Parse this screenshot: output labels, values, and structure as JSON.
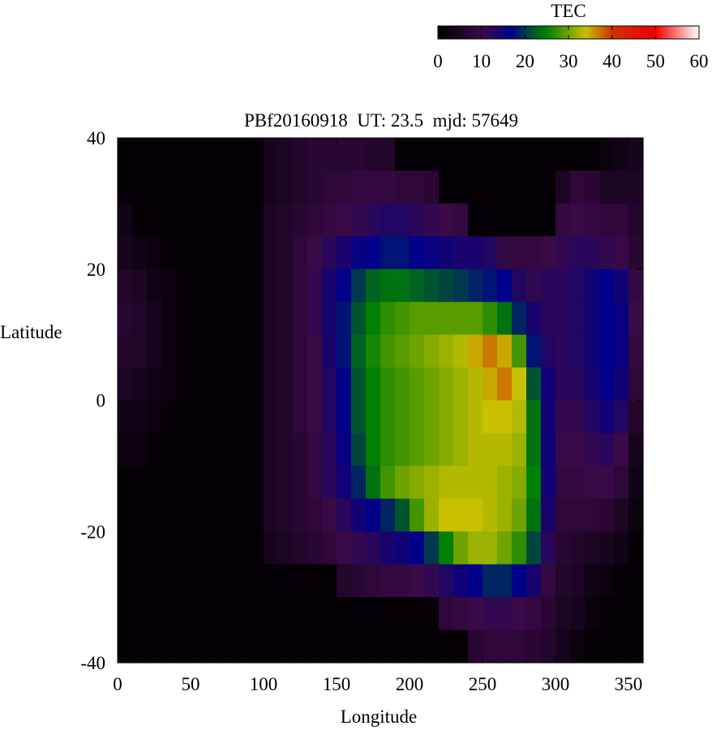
{
  "chart_data": {
    "type": "heatmap",
    "title": "PBf20160918  UT: 23.5  mjd: 57649",
    "xlabel": "Longitude",
    "ylabel": "Latitude",
    "xlim": [
      0,
      360
    ],
    "ylim": [
      -40,
      40
    ],
    "xticks": [
      "0",
      "50",
      "100",
      "150",
      "200",
      "250",
      "300",
      "350"
    ],
    "xtick_values": [
      0,
      50,
      100,
      150,
      200,
      250,
      300,
      350
    ],
    "yticks": [
      "40",
      "20",
      "0",
      "-20",
      "-40"
    ],
    "ytick_values": [
      40,
      20,
      0,
      -20,
      -40
    ],
    "colorbar": {
      "label": "TEC",
      "range": [
        0,
        60
      ],
      "ticks": [
        "0",
        "10",
        "20",
        "30",
        "40",
        "50",
        "60"
      ],
      "tick_values": [
        0,
        10,
        20,
        30,
        40,
        50,
        60
      ],
      "colormap": [
        [
          0,
          "#000000"
        ],
        [
          10,
          "#3a0a48"
        ],
        [
          17,
          "#00008a"
        ],
        [
          20,
          "#00384e"
        ],
        [
          25,
          "#008000"
        ],
        [
          34,
          "#c8c000"
        ],
        [
          40,
          "#d03000"
        ],
        [
          50,
          "#f00000"
        ],
        [
          60,
          "#ffffff"
        ]
      ]
    },
    "lon_centers": [
      5,
      15,
      25,
      35,
      45,
      55,
      65,
      75,
      85,
      95,
      105,
      115,
      125,
      135,
      145,
      155,
      165,
      175,
      185,
      195,
      205,
      215,
      225,
      235,
      245,
      255,
      265,
      275,
      285,
      295,
      305,
      315,
      325,
      335,
      345,
      355
    ],
    "lat_centers": [
      37.5,
      32.5,
      27.5,
      22.5,
      17.5,
      12.5,
      7.5,
      2.5,
      -2.5,
      -7.5,
      -12.5,
      -17.5,
      -22.5,
      -27.5,
      -32.5,
      -37.5
    ],
    "values": [
      [
        1,
        1,
        1,
        1,
        1,
        1,
        1,
        1,
        1,
        1,
        4,
        5,
        6,
        7,
        7,
        7,
        7,
        6,
        6,
        1,
        1,
        1,
        1,
        1,
        1,
        1,
        1,
        1,
        1,
        1,
        1,
        1,
        1,
        2,
        3,
        4
      ],
      [
        1,
        1,
        1,
        1,
        1,
        1,
        1,
        1,
        1,
        1,
        4,
        5,
        6,
        7,
        8,
        8,
        9,
        9,
        9,
        8,
        8,
        7,
        1,
        1,
        1,
        1,
        1,
        1,
        1,
        1,
        5,
        8,
        7,
        5,
        5,
        5
      ],
      [
        3,
        1,
        1,
        1,
        1,
        1,
        1,
        1,
        1,
        1,
        5,
        6,
        7,
        8,
        9,
        10,
        11,
        12,
        13,
        13,
        12,
        11,
        10,
        9,
        1,
        1,
        1,
        1,
        1,
        1,
        9,
        10,
        9,
        8,
        8,
        6
      ],
      [
        4,
        3,
        2,
        1,
        1,
        1,
        1,
        1,
        1,
        1,
        5,
        6,
        8,
        10,
        12,
        14,
        16,
        17,
        18,
        18,
        17,
        16,
        15,
        14,
        14,
        13,
        9,
        9,
        9,
        10,
        11,
        12,
        12,
        11,
        10,
        7
      ],
      [
        6,
        5,
        3,
        2,
        1,
        1,
        1,
        1,
        1,
        1,
        5,
        6,
        8,
        11,
        14,
        17,
        20,
        23,
        24,
        24,
        23,
        22,
        21,
        20,
        19,
        18,
        17,
        13,
        11,
        12,
        12,
        13,
        15,
        17,
        15,
        9
      ],
      [
        7,
        6,
        4,
        2,
        1,
        1,
        1,
        1,
        1,
        1,
        5,
        6,
        8,
        11,
        14,
        18,
        22,
        25,
        27,
        28,
        29,
        29,
        29,
        29,
        29,
        27,
        24,
        19,
        14,
        12,
        12,
        13,
        15,
        17,
        16,
        10
      ],
      [
        6,
        6,
        4,
        2,
        1,
        1,
        1,
        1,
        1,
        1,
        5,
        6,
        8,
        10,
        14,
        18,
        23,
        26,
        28,
        29,
        30,
        31,
        32,
        33,
        35,
        37,
        35,
        28,
        18,
        13,
        12,
        13,
        15,
        17,
        16,
        9
      ],
      [
        5,
        4,
        3,
        2,
        1,
        1,
        1,
        1,
        1,
        1,
        5,
        6,
        8,
        10,
        13,
        17,
        22,
        25,
        27,
        28,
        29,
        30,
        31,
        32,
        33,
        35,
        37,
        34,
        22,
        15,
        12,
        12,
        14,
        17,
        15,
        8
      ],
      [
        3,
        3,
        2,
        1,
        1,
        1,
        1,
        1,
        1,
        1,
        5,
        6,
        8,
        10,
        13,
        17,
        22,
        25,
        27,
        28,
        29,
        30,
        31,
        32,
        33,
        34,
        34,
        33,
        24,
        15,
        11,
        11,
        13,
        15,
        13,
        6
      ],
      [
        2,
        2,
        1,
        1,
        1,
        1,
        1,
        1,
        1,
        1,
        5,
        6,
        7,
        9,
        12,
        16,
        21,
        25,
        27,
        28,
        29,
        30,
        31,
        32,
        33,
        33,
        33,
        32,
        24,
        15,
        10,
        10,
        11,
        12,
        10,
        4
      ],
      [
        1,
        1,
        1,
        1,
        1,
        1,
        1,
        1,
        1,
        1,
        5,
        6,
        7,
        9,
        12,
        15,
        19,
        24,
        28,
        30,
        31,
        32,
        33,
        33,
        33,
        33,
        32,
        31,
        25,
        15,
        9,
        9,
        10,
        10,
        8,
        3
      ],
      [
        1,
        1,
        1,
        1,
        1,
        1,
        1,
        1,
        1,
        1,
        5,
        6,
        7,
        8,
        10,
        12,
        15,
        17,
        19,
        22,
        28,
        32,
        34,
        34,
        34,
        33,
        32,
        30,
        24,
        14,
        8,
        8,
        8,
        7,
        5,
        2
      ],
      [
        1,
        1,
        1,
        1,
        1,
        1,
        1,
        1,
        1,
        1,
        4,
        5,
        6,
        7,
        8,
        10,
        11,
        12,
        14,
        15,
        17,
        20,
        25,
        30,
        32,
        32,
        30,
        27,
        21,
        12,
        7,
        6,
        5,
        4,
        3,
        1
      ],
      [
        1,
        1,
        1,
        1,
        1,
        1,
        1,
        1,
        1,
        1,
        1,
        1,
        1,
        1,
        1,
        6,
        7,
        8,
        9,
        9,
        10,
        11,
        13,
        15,
        17,
        19,
        19,
        17,
        14,
        9,
        6,
        5,
        3,
        2,
        1,
        1
      ],
      [
        1,
        1,
        1,
        1,
        1,
        1,
        1,
        1,
        1,
        1,
        1,
        1,
        1,
        1,
        1,
        1,
        1,
        1,
        1,
        1,
        1,
        1,
        8,
        9,
        10,
        11,
        11,
        10,
        9,
        7,
        5,
        4,
        2,
        1,
        1,
        1
      ],
      [
        1,
        1,
        1,
        1,
        1,
        1,
        1,
        1,
        1,
        1,
        1,
        1,
        1,
        1,
        1,
        1,
        1,
        1,
        1,
        1,
        1,
        1,
        1,
        1,
        7,
        8,
        8,
        8,
        7,
        6,
        4,
        2,
        1,
        1,
        1,
        1
      ]
    ]
  }
}
